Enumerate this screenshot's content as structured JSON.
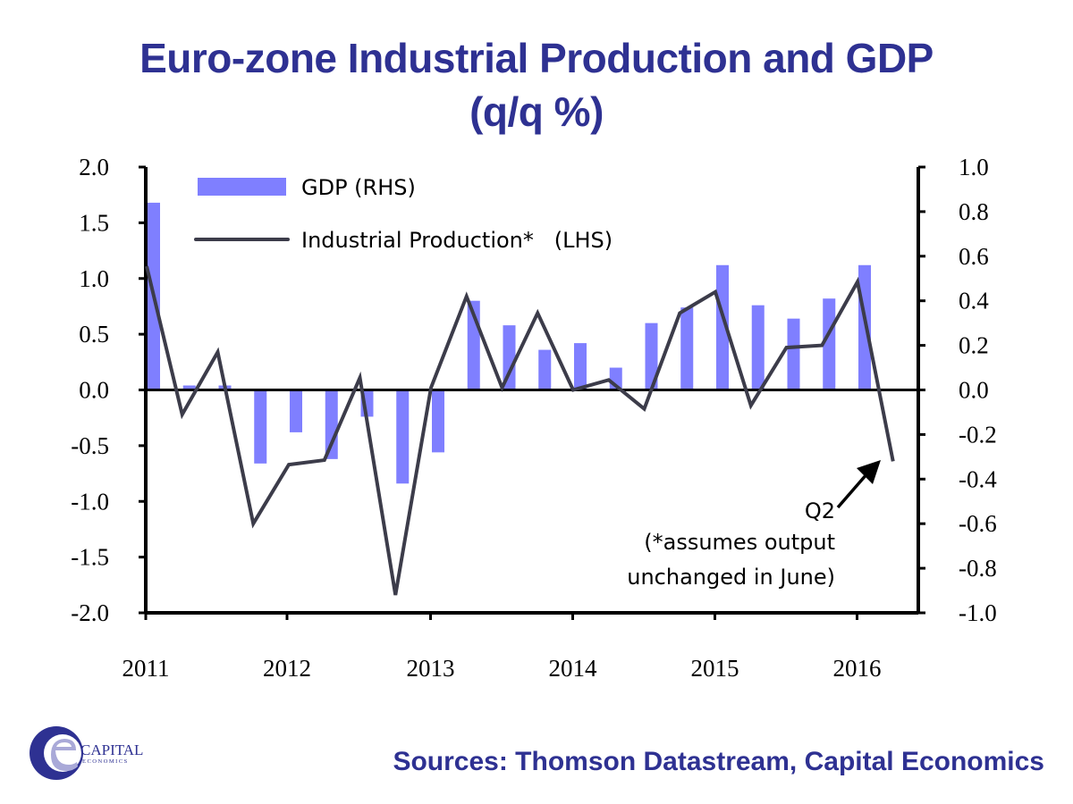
{
  "chart_data": {
    "type": "bar+line",
    "title": "Euro-zone Industrial Production and GDP",
    "subtitle": "(q/q %)",
    "xlabel": "",
    "ylabel_left": "",
    "ylabel_right": "",
    "x_tick_labels": [
      "2011",
      "2012",
      "2013",
      "2014",
      "2015",
      "2016"
    ],
    "categories": [
      "2011Q1",
      "2011Q2",
      "2011Q3",
      "2011Q4",
      "2012Q1",
      "2012Q2",
      "2012Q3",
      "2012Q4",
      "2013Q1",
      "2013Q2",
      "2013Q3",
      "2013Q4",
      "2014Q1",
      "2014Q2",
      "2014Q3",
      "2014Q4",
      "2015Q1",
      "2015Q2",
      "2015Q3",
      "2015Q4",
      "2016Q1",
      "2016Q2"
    ],
    "left_axis": {
      "ylim": [
        -2.0,
        2.0
      ],
      "ticks": [
        "2.0",
        "1.5",
        "1.0",
        "0.5",
        "0.0",
        "-0.5",
        "-1.0",
        "-1.5",
        "-2.0"
      ]
    },
    "right_axis": {
      "ylim": [
        -1.0,
        1.0
      ],
      "ticks": [
        "1.0",
        "0.8",
        "0.6",
        "0.4",
        "0.2",
        "0.0",
        "-0.2",
        "-0.4",
        "-0.6",
        "-0.8",
        "-1.0"
      ]
    },
    "series": [
      {
        "name": "GDP (RHS)",
        "type": "bar",
        "axis": "right",
        "color": "#7f7fff",
        "values": [
          0.84,
          0.02,
          0.02,
          -0.33,
          -0.19,
          -0.31,
          -0.12,
          -0.42,
          -0.28,
          0.4,
          0.29,
          0.18,
          0.21,
          0.1,
          0.3,
          0.37,
          0.56,
          0.38,
          0.32,
          0.41,
          0.56,
          null
        ]
      },
      {
        "name": "Industrial Production*  (LHS)",
        "type": "line",
        "axis": "left",
        "color": "#3c3c4a",
        "values": [
          1.11,
          -0.22,
          0.34,
          -1.2,
          -0.67,
          -0.63,
          0.11,
          -1.84,
          0.02,
          0.84,
          0.02,
          0.69,
          0.0,
          0.09,
          -0.17,
          0.69,
          0.88,
          -0.14,
          0.38,
          0.4,
          0.97,
          -0.64
        ]
      }
    ],
    "legend": [
      "GDP (RHS)",
      "Industrial Production*   (LHS)"
    ],
    "legend_position": "top-left",
    "annotations": {
      "arrow_label": "Q2",
      "note_line1": "(*assumes output",
      "note_line2": "unchanged in June)"
    },
    "grid": false
  },
  "header": {
    "title_line1": "Euro-zone Industrial Production and GDP",
    "title_line2": "(q/q %)"
  },
  "footer": {
    "sources": "Sources: Thomson Datastream, Capital Economics",
    "logo_name": "CAPITAL",
    "logo_sub": "ECONOMICS"
  }
}
